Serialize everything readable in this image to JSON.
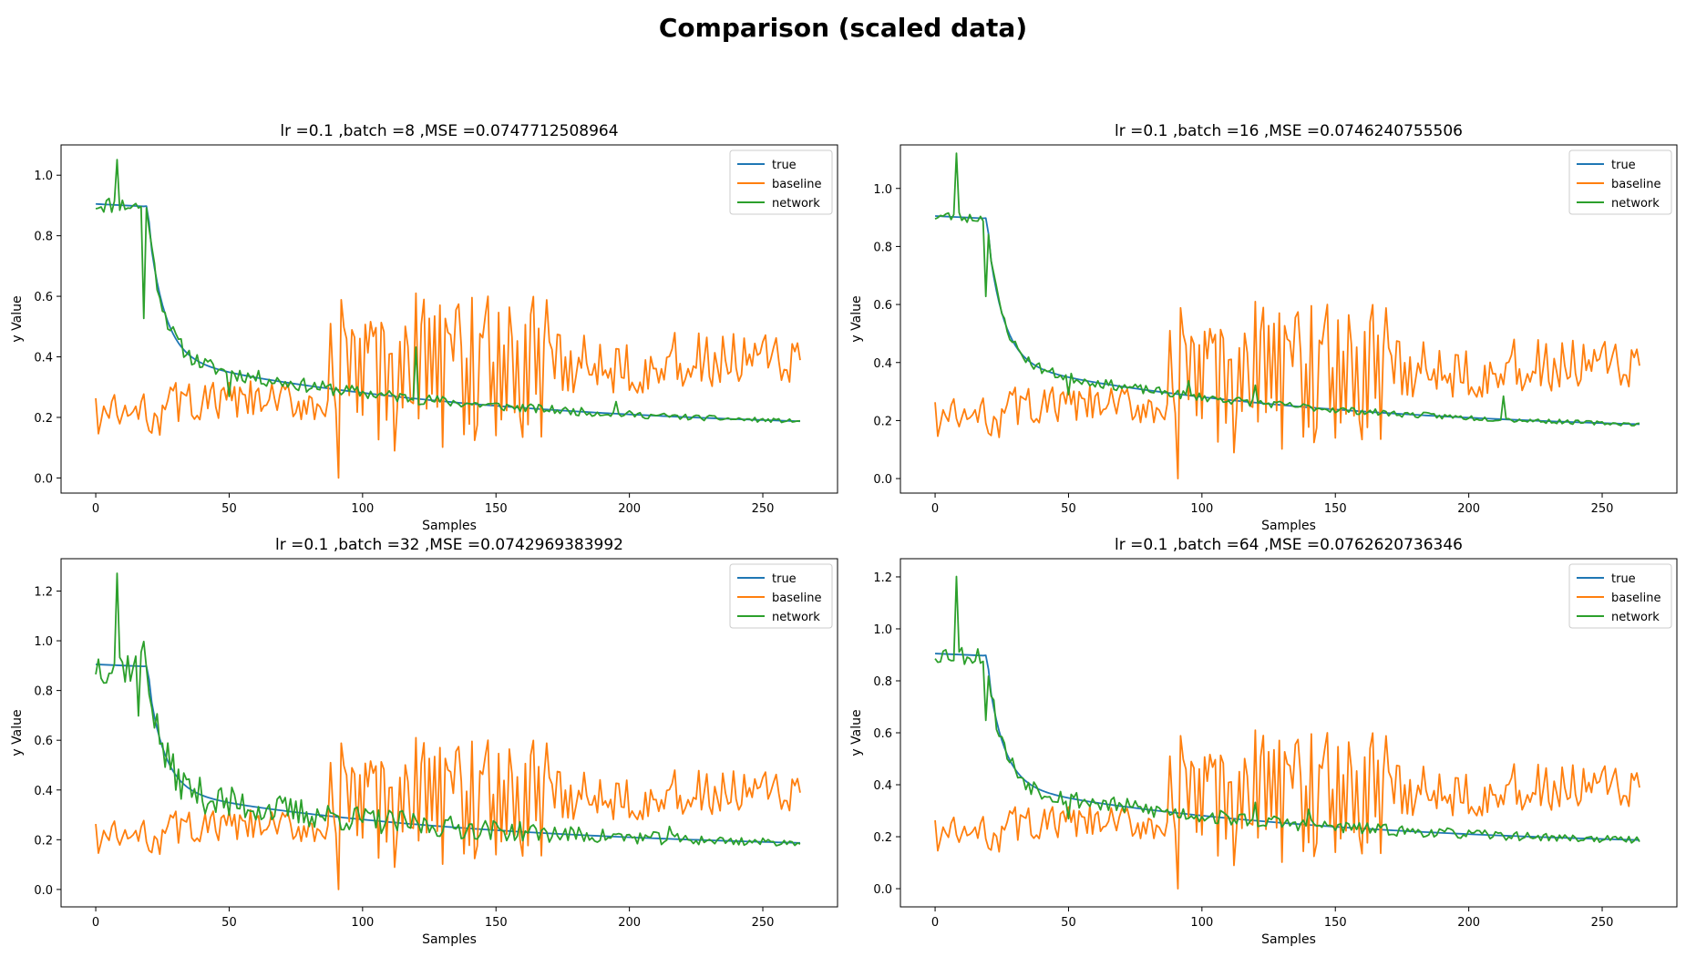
{
  "figure": {
    "suptitle": "Comparison (scaled data)"
  },
  "colors": {
    "true": "#1f77b4",
    "baseline": "#ff7f0e",
    "network": "#2ca02c"
  },
  "chart_data": [
    {
      "type": "line",
      "title": "lr =0.1 ,batch =8 ,MSE =0.0747712508964",
      "xlabel": "Samples",
      "ylabel": "y Value",
      "xlim": [
        -13,
        278
      ],
      "ylim": [
        -0.05,
        1.1
      ],
      "xticks": [
        0,
        50,
        100,
        150,
        200,
        250
      ],
      "yticks": [
        0.0,
        0.2,
        0.4,
        0.6,
        0.8,
        1.0
      ],
      "ytick_labels": [
        "0.0",
        "0.2",
        "0.4",
        "0.6",
        "0.8",
        "1.0"
      ],
      "legend": "upper right",
      "legend_entries": [
        "true",
        "baseline",
        "network"
      ],
      "network_profile": {
        "seed": 11,
        "amp_start": 0.03,
        "amp_end": 0.006,
        "spikes": [
          [
            8,
            0.15
          ],
          [
            18,
            -0.37
          ],
          [
            50,
            -0.08
          ],
          [
            120,
            0.17
          ],
          [
            195,
            0.04
          ]
        ]
      }
    },
    {
      "type": "line",
      "title": "lr =0.1 ,batch =16 ,MSE =0.0746240755506",
      "xlabel": "Samples",
      "ylabel": "y Value",
      "xlim": [
        -13,
        278
      ],
      "ylim": [
        -0.05,
        1.15
      ],
      "xticks": [
        0,
        50,
        100,
        150,
        200,
        250
      ],
      "yticks": [
        0.0,
        0.2,
        0.4,
        0.6,
        0.8,
        1.0
      ],
      "ytick_labels": [
        "0.0",
        "0.2",
        "0.4",
        "0.6",
        "0.8",
        "1.0"
      ],
      "legend": "upper right",
      "legend_entries": [
        "true",
        "baseline",
        "network"
      ],
      "network_profile": {
        "seed": 23,
        "amp_start": 0.02,
        "amp_end": 0.006,
        "spikes": [
          [
            8,
            0.22
          ],
          [
            19,
            -0.27
          ],
          [
            50,
            -0.06
          ],
          [
            95,
            0.05
          ],
          [
            120,
            0.06
          ],
          [
            213,
            0.08
          ]
        ]
      }
    },
    {
      "type": "line",
      "title": "lr =0.1 ,batch =32 ,MSE =0.0742969383992",
      "xlabel": "Samples",
      "ylabel": "y Value",
      "xlim": [
        -13,
        278
      ],
      "ylim": [
        -0.07,
        1.33
      ],
      "xticks": [
        0,
        50,
        100,
        150,
        200,
        250
      ],
      "yticks": [
        0.0,
        0.2,
        0.4,
        0.6,
        0.8,
        1.0,
        1.2
      ],
      "ytick_labels": [
        "0.0",
        "0.2",
        "0.4",
        "0.6",
        "0.8",
        "1.0",
        "1.2"
      ],
      "legend": "upper right",
      "legend_entries": [
        "true",
        "baseline",
        "network"
      ],
      "network_profile": {
        "seed": 37,
        "amp_start": 0.08,
        "amp_end": 0.012,
        "spikes": [
          [
            8,
            0.37
          ],
          [
            16,
            -0.2
          ],
          [
            18,
            0.1
          ],
          [
            50,
            -0.05
          ],
          [
            215,
            0.05
          ]
        ]
      }
    },
    {
      "type": "line",
      "title": "lr =0.1 ,batch =64 ,MSE =0.0762620736346",
      "xlabel": "Samples",
      "ylabel": "y Value",
      "xlim": [
        -13,
        278
      ],
      "ylim": [
        -0.07,
        1.27
      ],
      "xticks": [
        0,
        50,
        100,
        150,
        200,
        250
      ],
      "yticks": [
        0.0,
        0.2,
        0.4,
        0.6,
        0.8,
        1.0,
        1.2
      ],
      "ytick_labels": [
        "0.0",
        "0.2",
        "0.4",
        "0.6",
        "0.8",
        "1.0",
        "1.2"
      ],
      "legend": "upper right",
      "legend_entries": [
        "true",
        "baseline",
        "network"
      ],
      "network_profile": {
        "seed": 53,
        "amp_start": 0.04,
        "amp_end": 0.012,
        "spikes": [
          [
            8,
            0.3
          ],
          [
            19,
            -0.25
          ],
          [
            50,
            -0.08
          ],
          [
            120,
            0.07
          ],
          [
            140,
            0.06
          ]
        ]
      }
    }
  ]
}
